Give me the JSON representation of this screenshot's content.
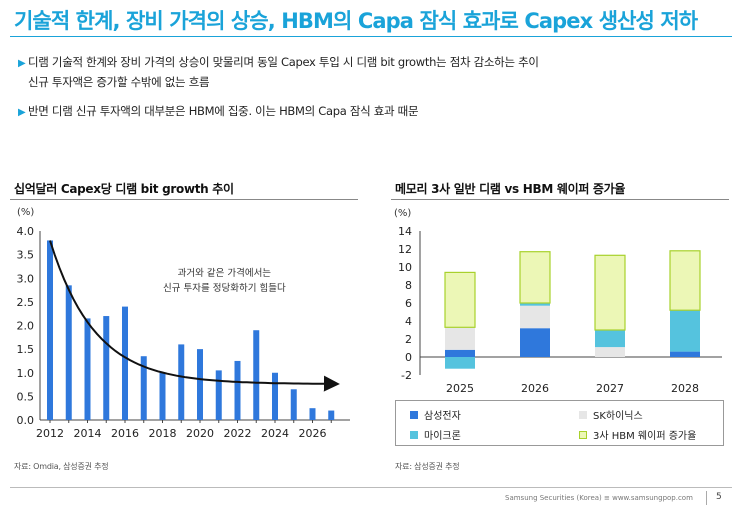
{
  "page": {
    "title": "기술적 한계, 장비 가격의 상승, HBM의 Capa 잠식 효과로 Capex 생산성 저하",
    "bullets": [
      {
        "line1": "디램 기술적 한계와 장비 가격의 상승이 맞물리며 동일 Capex 투입 시 디램 bit growth는 점차 감소하는 추이",
        "line2": "신규 투자액은 증가할 수밖에 없는 흐름"
      },
      {
        "line1": "반면 디램 신규 투자액의 대부분은 HBM에 집중. 이는 HBM의 Capa 잠식 효과 때문",
        "line2": ""
      }
    ],
    "footer": "Samsung Securities (Korea) ≡ www.samsungpop.com",
    "page_number": "5",
    "colors": {
      "accent": "#1aa3d9",
      "bar_blue": "#2f78dc",
      "light_gray": "#e6e6e6",
      "cyan": "#55c3de",
      "light_green": "#ecf7b6",
      "green_border": "#a8d12c"
    }
  },
  "left_chart": {
    "title": "십억달러 Capex당 디램 bit growth 추이",
    "unit": "(%)",
    "annotation_line1": "과거와 같은 가격에서는",
    "annotation_line2": "신규 투자를 정당화하기 힘들다",
    "source": "자료: Omdia, 삼성증권 추정"
  },
  "right_chart": {
    "title": "메모리 3사 일반 디램 vs HBM 웨이퍼 증가율",
    "unit": "(%)",
    "source": "자료: 삼성증권 추정",
    "legend": [
      "삼성전자",
      "SK하이닉스",
      "마이크론",
      "3사 HBM 웨이퍼 증가율"
    ]
  },
  "chart_data": [
    {
      "type": "bar",
      "title": "십억달러 Capex당 디램 bit growth 추이",
      "ylabel": "(%)",
      "ylim": [
        0,
        4.0
      ],
      "yticks": [
        "0.0",
        "0.5",
        "1.0",
        "1.5",
        "2.0",
        "2.5",
        "3.0",
        "3.5",
        "4.0"
      ],
      "xtick_labels": [
        "2012",
        "2014",
        "2016",
        "2018",
        "2020",
        "2022",
        "2024",
        "2026"
      ],
      "x": [
        2012,
        2013,
        2014,
        2015,
        2016,
        2017,
        2018,
        2019,
        2020,
        2021,
        2022,
        2023,
        2024,
        2025,
        2026,
        2027
      ],
      "values": [
        3.8,
        2.85,
        2.15,
        2.2,
        2.4,
        1.35,
        1.0,
        1.6,
        1.5,
        1.05,
        1.25,
        1.9,
        1.0,
        0.65,
        0.25,
        0.2
      ],
      "trend": "decay curve with arrow"
    },
    {
      "type": "bar",
      "stacked": true,
      "title": "메모리 3사 일반 디램 vs HBM 웨이퍼 증가율",
      "ylabel": "(%)",
      "ylim": [
        -2,
        14
      ],
      "yticks": [
        "-2",
        "0",
        "2",
        "4",
        "6",
        "8",
        "10",
        "12",
        "14"
      ],
      "categories": [
        "2025",
        "2026",
        "2027",
        "2028"
      ],
      "series": [
        {
          "name": "삼성전자",
          "values": [
            0.8,
            3.2,
            0.0,
            0.6
          ]
        },
        {
          "name": "SK하이닉스",
          "values": [
            2.5,
            2.5,
            1.1,
            0.0
          ]
        },
        {
          "name": "마이크론",
          "values": [
            -1.3,
            0.3,
            1.9,
            4.6
          ]
        },
        {
          "name": "3사 HBM 웨이퍼 증가율",
          "values": [
            6.1,
            5.7,
            8.3,
            6.6
          ]
        }
      ]
    }
  ]
}
